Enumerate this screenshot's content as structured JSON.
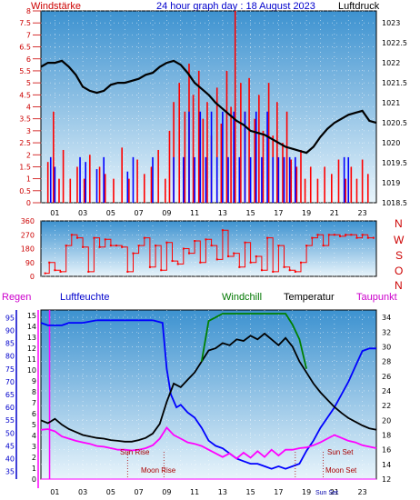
{
  "header": {
    "left_label": "Windstärke",
    "title": "24 hour graph day : 18 August 2023",
    "right_label": "Luftdruck"
  },
  "middle_panel": {
    "right_letters": [
      "N",
      "W",
      "S",
      "O",
      "N"
    ]
  },
  "bottom_header": {
    "regen": "Regen",
    "luftfeuchte": "Luftfeuchte",
    "windchill": "Windchill",
    "temperatur": "Temperatur",
    "taupunkt": "Taupunkt"
  },
  "annotations": {
    "sun_rise": "Sun Rise",
    "moon_rise": "Moon Rise",
    "sun_set": "Sun Set",
    "moon_set": "Moon Set",
    "sun_set_axis": "Sun Set"
  },
  "colors": {
    "panel_top": "#3d92d0",
    "panel_bottom": "#e8f4fb",
    "wind_speed": "#ff0000",
    "wind_gust": "#0000ff",
    "pressure": "#000000",
    "humidity": "#0000ff",
    "temperature": "#000000",
    "windchill": "#008000",
    "dewpoint": "#ff00ff",
    "rain": "#ff00ff",
    "text_red": "#cc0000",
    "text_blue": "#0000cc",
    "text_magenta": "#cc00cc",
    "text_green": "#007700"
  },
  "chart_data": [
    {
      "type": "line",
      "panel": "wind-pressure",
      "x_ticks": [
        "01",
        "03",
        "05",
        "07",
        "09",
        "11",
        "13",
        "15",
        "17",
        "19",
        "21",
        "23"
      ],
      "y_left_ticks": [
        "0",
        "0.5",
        "1",
        "1.5",
        "2",
        "2.5",
        "3",
        "3.5",
        "4",
        "4.5",
        "5",
        "5.5",
        "6",
        "6.5",
        "7",
        "7.5",
        "8"
      ],
      "y_left_ylim": [
        0,
        8
      ],
      "y_right_ticks": [
        "1018.5",
        "1019",
        "1019.5",
        "1020",
        "1020.5",
        "1021",
        "1021.5",
        "1022",
        "1022.5",
        "1023"
      ],
      "y_right_ylim": [
        1018.5,
        1023.3
      ],
      "series": [
        {
          "name": "Luftdruck",
          "axis": "right",
          "x": [
            0,
            0.5,
            1,
            1.5,
            2,
            2.5,
            3,
            3.5,
            4,
            4.5,
            5,
            5.5,
            6,
            6.5,
            7,
            7.5,
            8,
            8.5,
            9,
            9.5,
            10,
            10.5,
            11,
            11.5,
            12,
            12.5,
            13,
            13.5,
            14,
            14.5,
            15,
            15.5,
            16,
            16.5,
            17,
            17.5,
            18,
            18.5,
            19,
            19.5,
            20,
            20.5,
            21,
            21.5,
            22,
            22.5,
            23,
            23.5,
            24
          ],
          "y": [
            1021.9,
            1022.0,
            1022.0,
            1022.05,
            1021.9,
            1021.7,
            1021.4,
            1021.3,
            1021.25,
            1021.3,
            1021.45,
            1021.5,
            1021.5,
            1021.55,
            1021.6,
            1021.7,
            1021.75,
            1021.9,
            1022.0,
            1022.05,
            1021.95,
            1021.75,
            1021.5,
            1021.35,
            1021.2,
            1021.0,
            1020.85,
            1020.7,
            1020.55,
            1020.45,
            1020.3,
            1020.25,
            1020.2,
            1020.1,
            1020.0,
            1019.9,
            1019.85,
            1019.8,
            1019.75,
            1019.9,
            1020.15,
            1020.35,
            1020.5,
            1020.6,
            1020.7,
            1020.75,
            1020.8,
            1020.55,
            1020.5
          ]
        }
      ],
      "bars": [
        {
          "name": "Windstärke",
          "axis": "left",
          "color": "red",
          "x": [
            0.5,
            0.9,
            1.3,
            1.6,
            2.1,
            2.6,
            3.1,
            3.5,
            4.2,
            4.6,
            5.2,
            5.8,
            6.3,
            6.9,
            7.4,
            7.9,
            8.4,
            8.9,
            9.2,
            9.5,
            9.9,
            10.3,
            10.6,
            10.9,
            11.3,
            11.6,
            11.9,
            12.2,
            12.6,
            12.9,
            13.3,
            13.6,
            13.9,
            14.3,
            14.6,
            14.9,
            15.3,
            15.6,
            15.9,
            16.3,
            16.6,
            16.9,
            17.3,
            17.6,
            17.9,
            18.3,
            18.6,
            18.9,
            19.3,
            19.8,
            20.3,
            20.8,
            21.3,
            21.8,
            22.2,
            22.6,
            23.0,
            23.4
          ],
          "y": [
            1.7,
            3.8,
            1.0,
            2.2,
            1.0,
            1.5,
            1.0,
            2.0,
            1.5,
            1.2,
            1.0,
            2.3,
            1.0,
            1.8,
            1.2,
            1.5,
            2.2,
            1.0,
            3.0,
            4.2,
            5.0,
            3.8,
            5.8,
            4.5,
            5.5,
            3.5,
            4.2,
            2.8,
            4.8,
            3.3,
            5.5,
            4.0,
            8.0,
            5.0,
            3.8,
            5.2,
            3.5,
            4.5,
            3.0,
            5.0,
            2.8,
            4.2,
            2.5,
            3.8,
            1.8,
            1.5,
            2.2,
            1.0,
            1.5,
            1.0,
            1.5,
            1.2,
            1.8,
            1.0,
            1.5,
            1.0,
            1.8,
            1.2
          ]
        },
        {
          "name": "Windstärke (Böen)",
          "axis": "left",
          "color": "blue",
          "x": [
            0.7,
            1.0,
            2.8,
            3.2,
            4.0,
            4.5,
            6.2,
            6.6,
            8.0,
            9.5,
            10.2,
            10.6,
            11.0,
            11.4,
            11.8,
            12.2,
            12.6,
            13.0,
            13.4,
            13.8,
            14.2,
            14.6,
            15.0,
            15.4,
            15.8,
            16.2,
            16.6,
            17.0,
            17.4,
            17.8,
            18.2,
            21.7,
            22.0
          ],
          "y": [
            1.9,
            1.5,
            1.9,
            1.7,
            1.4,
            1.9,
            1.3,
            1.9,
            1.9,
            1.9,
            1.9,
            3.8,
            1.9,
            3.8,
            1.9,
            3.8,
            1.9,
            3.8,
            1.9,
            3.8,
            1.9,
            3.8,
            1.9,
            3.8,
            1.9,
            3.8,
            1.9,
            1.9,
            1.9,
            1.9,
            1.9,
            1.9,
            1.9
          ]
        }
      ]
    },
    {
      "type": "scatter",
      "panel": "wind-direction",
      "y_ticks": [
        "0",
        "90",
        "180",
        "270",
        "360"
      ],
      "ylim": [
        0,
        360
      ],
      "x": [
        0.3,
        0.6,
        1.0,
        1.4,
        1.8,
        2.2,
        2.6,
        3.0,
        3.4,
        3.8,
        4.2,
        4.6,
        5.0,
        5.4,
        5.8,
        6.2,
        6.6,
        7.0,
        7.4,
        7.8,
        8.2,
        8.6,
        9.0,
        9.4,
        9.8,
        10.2,
        10.6,
        11.0,
        11.4,
        11.8,
        12.2,
        12.6,
        13.0,
        13.4,
        13.8,
        14.2,
        14.6,
        15.0,
        15.4,
        15.8,
        16.2,
        16.6,
        17.0,
        17.4,
        17.8,
        18.2,
        18.6,
        19.0,
        19.4,
        19.8,
        20.2,
        20.6,
        21.0,
        21.4,
        21.8,
        22.2,
        22.6,
        23.0,
        23.4,
        23.8
      ],
      "y": [
        20,
        90,
        40,
        30,
        200,
        270,
        250,
        190,
        30,
        250,
        190,
        240,
        200,
        200,
        190,
        30,
        150,
        200,
        250,
        60,
        200,
        40,
        220,
        100,
        80,
        180,
        150,
        230,
        90,
        240,
        200,
        110,
        300,
        130,
        150,
        60,
        220,
        90,
        130,
        40,
        250,
        30,
        200,
        60,
        40,
        30,
        90,
        200,
        250,
        270,
        200,
        270,
        270,
        260,
        270,
        270,
        250,
        270,
        250,
        250
      ]
    },
    {
      "type": "line",
      "panel": "temperature-humidity",
      "y_left_ticks": [
        "35",
        "40",
        "45",
        "50",
        "55",
        "60",
        "65",
        "70",
        "75",
        "80",
        "85",
        "90",
        "95"
      ],
      "y_left_ylim": [
        32,
        98
      ],
      "y_rain_ticks": [
        "0",
        "1",
        "2",
        "3",
        "4",
        "5",
        "6",
        "7",
        "8",
        "9",
        "10",
        "11",
        "12",
        "13",
        "14",
        "15"
      ],
      "y_rain_ylim": [
        0,
        15.5
      ],
      "y_right_ticks": [
        "12",
        "14",
        "16",
        "18",
        "20",
        "22",
        "24",
        "26",
        "28",
        "30",
        "32",
        "34"
      ],
      "y_right_ylim": [
        12,
        35
      ],
      "series": [
        {
          "name": "Luftfeuchte",
          "axis": "left",
          "x": [
            0,
            0.5,
            1,
            1.5,
            2,
            3,
            4,
            5,
            6,
            7,
            8,
            8.7,
            9,
            9.3,
            9.7,
            10,
            10.5,
            11,
            11.5,
            12,
            12.5,
            13,
            13.5,
            14,
            14.5,
            15,
            15.5,
            16,
            16.5,
            17,
            17.5,
            18,
            18.5,
            19,
            19.5,
            20,
            20.5,
            21,
            21.5,
            22,
            22.5,
            23,
            23.5,
            24
          ],
          "y": [
            93,
            92,
            92,
            92,
            93,
            93,
            94,
            94,
            94,
            94,
            94,
            93,
            75,
            65,
            60,
            61,
            58,
            56,
            52,
            47,
            45,
            44,
            42,
            40,
            39,
            38,
            38,
            37,
            36,
            37,
            36,
            37,
            38,
            43,
            47,
            52,
            56,
            60,
            65,
            70,
            76,
            82,
            83,
            83
          ]
        },
        {
          "name": "Temperatur",
          "axis": "right",
          "x": [
            0,
            0.5,
            1,
            1.5,
            2,
            2.5,
            3,
            3.5,
            4,
            4.5,
            5,
            5.5,
            6,
            6.5,
            7,
            7.5,
            8,
            8.5,
            9,
            9.5,
            10,
            10.5,
            11,
            11.5,
            12,
            12.5,
            13,
            13.5,
            14,
            14.5,
            15,
            15.5,
            16,
            16.5,
            17,
            17.5,
            18,
            18.5,
            19,
            19.5,
            20,
            20.5,
            21,
            21.5,
            22,
            22.5,
            23,
            23.5,
            24
          ],
          "y": [
            20.0,
            19.6,
            20.2,
            19.4,
            18.8,
            18.4,
            18.0,
            17.8,
            17.6,
            17.5,
            17.3,
            17.2,
            17.1,
            17.1,
            17.3,
            17.6,
            18.2,
            19.5,
            22.5,
            25.0,
            24.5,
            25.5,
            26.5,
            28.0,
            29.5,
            29.8,
            30.5,
            30.2,
            31.0,
            30.8,
            31.5,
            31.0,
            31.8,
            31.0,
            30.2,
            31.2,
            30.0,
            28.0,
            26.5,
            25.0,
            23.8,
            22.8,
            21.8,
            21.0,
            20.3,
            19.8,
            19.3,
            18.9,
            18.7
          ]
        },
        {
          "name": "Windchill",
          "axis": "right",
          "x": [
            11.5,
            12,
            12.5,
            13,
            13.5,
            14,
            14.5,
            15,
            15.5,
            16,
            16.5,
            17,
            17.5,
            18,
            18.5,
            19
          ],
          "y": [
            28.0,
            33.5,
            34.0,
            34.5,
            34.5,
            34.5,
            34.5,
            34.5,
            34.5,
            34.5,
            34.5,
            34.5,
            34.5,
            33.0,
            31.0,
            27.0
          ]
        },
        {
          "name": "Taupunkt",
          "axis": "right",
          "x": [
            0,
            0.5,
            1,
            1.5,
            2,
            2.5,
            3,
            3.5,
            4,
            4.5,
            5,
            5.5,
            6,
            6.5,
            7,
            7.5,
            8,
            8.5,
            9,
            9.5,
            10,
            10.5,
            11,
            11.5,
            12,
            12.5,
            13,
            13.5,
            14,
            14.5,
            15,
            15.5,
            16,
            16.5,
            17,
            17.5,
            18,
            18.5,
            19,
            19.5,
            20,
            20.5,
            21,
            21.5,
            22,
            22.5,
            23,
            23.5,
            24
          ],
          "y": [
            18.7,
            18.8,
            18.5,
            17.8,
            17.5,
            17.2,
            17.0,
            16.8,
            16.5,
            16.4,
            16.2,
            16.0,
            16.0,
            15.9,
            16.0,
            16.2,
            16.6,
            17.5,
            19.0,
            18.0,
            17.5,
            17.0,
            16.8,
            16.5,
            16.0,
            15.5,
            15.0,
            15.5,
            14.8,
            15.6,
            14.9,
            15.8,
            15.0,
            16.0,
            15.2,
            16.0,
            16.0,
            16.2,
            16.3,
            16.6,
            17.0,
            17.5,
            18.0,
            17.6,
            17.2,
            17.0,
            16.6,
            16.4,
            16.2
          ]
        },
        {
          "name": "Regen",
          "axis": "rain",
          "x": [
            0,
            24
          ],
          "y": [
            0,
            0
          ]
        }
      ],
      "rain_marker_x": [
        0.1
      ]
    }
  ]
}
